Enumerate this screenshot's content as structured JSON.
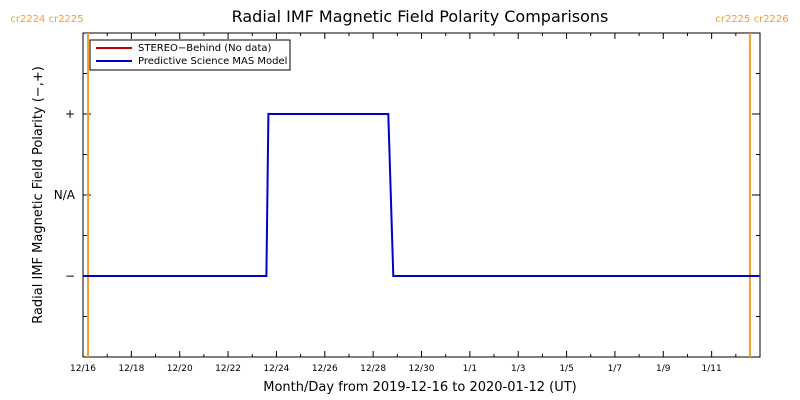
{
  "chart_data": {
    "type": "line",
    "title": "Radial IMF Magnetic Field Polarity Comparisons",
    "xlabel": "Month/Day from 2019-12-16 to 2020-01-12 (UT)",
    "ylabel": "Radial IMF Magnetic Field Polarity (−,+)",
    "x_range": [
      "2019-12-16",
      "2020-01-13"
    ],
    "x_ticks": [
      "12/16",
      "12/18",
      "12/20",
      "12/22",
      "12/24",
      "12/26",
      "12/28",
      "12/30",
      "1/1",
      "1/3",
      "1/5",
      "1/7",
      "1/9",
      "1/11"
    ],
    "y_categories": [
      "−",
      "N/A",
      "+"
    ],
    "y_values": [
      -1,
      0,
      1
    ],
    "grid": false,
    "legend_position": "top-left",
    "carrington_markers": [
      {
        "label": "cr2224 cr2225",
        "date": "2019-12-16T05:00",
        "side": "left",
        "color": "#f0a030"
      },
      {
        "label": "cr2225 cr2226",
        "date": "2020-01-12T14:00",
        "side": "right",
        "color": "#f0a030"
      }
    ],
    "series": [
      {
        "name": "STEREO−Behind (No data)",
        "color": "#c00000",
        "points": []
      },
      {
        "name": "Predictive Science MAS Model",
        "color": "#0000cc",
        "points": [
          {
            "x": "2019-12-16T00:00",
            "y": -1
          },
          {
            "x": "2019-12-23T14:00",
            "y": -1
          },
          {
            "x": "2019-12-23T16:00",
            "y": 1
          },
          {
            "x": "2019-12-28T15:00",
            "y": 1
          },
          {
            "x": "2019-12-28T20:00",
            "y": -1
          },
          {
            "x": "2020-01-12T23:00",
            "y": -1
          }
        ]
      }
    ]
  }
}
